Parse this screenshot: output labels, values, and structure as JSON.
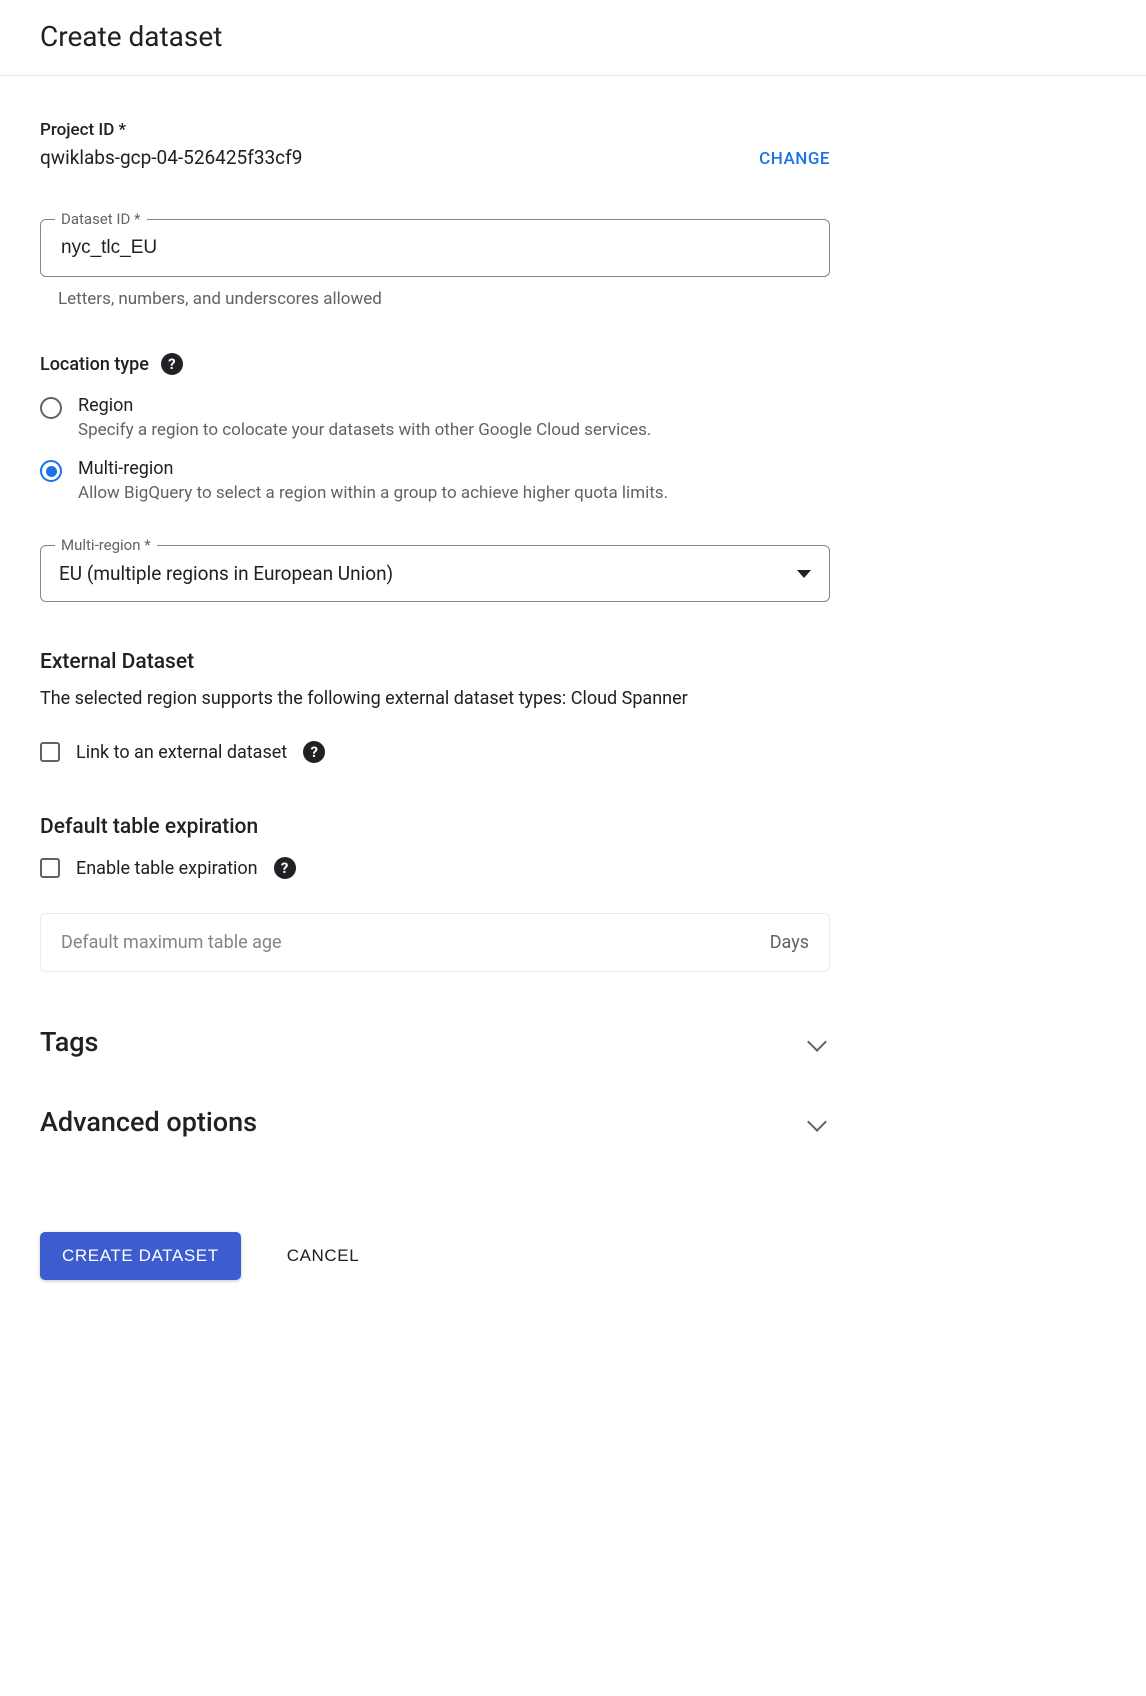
{
  "header": {
    "title": "Create dataset"
  },
  "project": {
    "label": "Project ID *",
    "value": "qwiklabs-gcp-04-526425f33cf9",
    "change_label": "CHANGE"
  },
  "dataset_id": {
    "label": "Dataset ID *",
    "value": "nyc_tlc_EU",
    "helper": "Letters, numbers, and underscores allowed"
  },
  "location_type": {
    "label": "Location type",
    "options": [
      {
        "key": "region",
        "title": "Region",
        "desc": "Specify a region to colocate your datasets with other Google Cloud services.",
        "selected": false
      },
      {
        "key": "multi-region",
        "title": "Multi-region",
        "desc": "Allow BigQuery to select a region within a group to achieve higher quota limits.",
        "selected": true
      }
    ]
  },
  "multi_region": {
    "label": "Multi-region *",
    "value": "EU (multiple regions in European Union)"
  },
  "external": {
    "title": "External Dataset",
    "body": "The selected region supports the following external dataset types: Cloud Spanner",
    "checkbox_label": "Link to an external dataset"
  },
  "expiration": {
    "title": "Default table expiration",
    "checkbox_label": "Enable table expiration",
    "placeholder": "Default maximum table age",
    "suffix": "Days"
  },
  "tags_section": {
    "title": "Tags"
  },
  "advanced_section": {
    "title": "Advanced options"
  },
  "actions": {
    "primary": "CREATE DATASET",
    "cancel": "CANCEL"
  },
  "colors": {
    "primary_blue": "#1a73e8",
    "button_blue": "#3c5ccf",
    "text_primary": "#202124",
    "text_secondary": "#5f6368",
    "border": "#80868b",
    "divider": "#e5e5e5"
  }
}
